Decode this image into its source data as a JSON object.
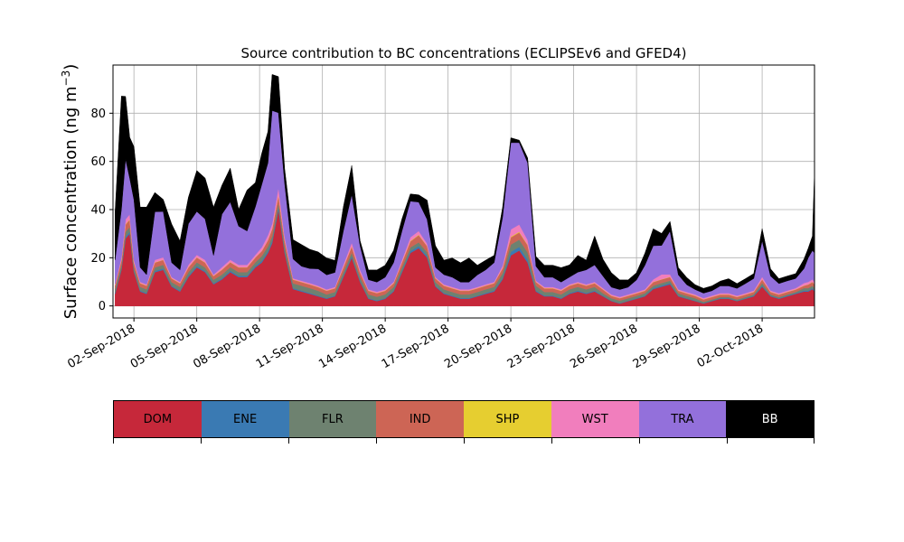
{
  "chart_data": {
    "type": "area",
    "title": "Source contribution to BC concentrations (ECLIPSEv6 and GFED4)",
    "ylabel": "Surface concentration (ng m",
    "ylabel_exponent": "−3",
    "ylabel_close": ")",
    "ylim": [
      -5,
      100
    ],
    "yticks": [
      0,
      20,
      40,
      60,
      80
    ],
    "xlim_days": [
      -1.0,
      32.5
    ],
    "xticks": [
      "02-Sep-2018",
      "05-Sep-2018",
      "08-Sep-2018",
      "11-Sep-2018",
      "14-Sep-2018",
      "17-Sep-2018",
      "20-Sep-2018",
      "23-Sep-2018",
      "26-Sep-2018",
      "29-Sep-2018",
      "02-Oct-2018"
    ],
    "xtick_days": [
      0,
      3,
      6,
      9,
      12,
      15,
      18,
      21,
      24,
      27,
      30
    ],
    "grid": true,
    "x_days": [
      -0.9,
      -0.6,
      -0.4,
      -0.2,
      0.0,
      0.3,
      0.6,
      1.0,
      1.4,
      1.8,
      2.2,
      2.6,
      3.0,
      3.4,
      3.8,
      4.2,
      4.6,
      5.0,
      5.4,
      5.8,
      6.1,
      6.4,
      6.6,
      6.9,
      7.2,
      7.6,
      8.0,
      8.4,
      8.8,
      9.2,
      9.6,
      10.0,
      10.4,
      10.8,
      11.2,
      11.6,
      12.0,
      12.4,
      12.8,
      13.2,
      13.6,
      14.0,
      14.4,
      14.8,
      15.2,
      15.6,
      16.0,
      16.4,
      16.8,
      17.2,
      17.6,
      18.0,
      18.4,
      18.8,
      19.2,
      19.6,
      20.0,
      20.4,
      20.8,
      21.2,
      21.6,
      22.0,
      22.4,
      22.8,
      23.2,
      23.6,
      24.0,
      24.4,
      24.8,
      25.2,
      25.6,
      26.0,
      26.4,
      26.8,
      27.2,
      27.6,
      28.0,
      28.4,
      28.8,
      29.2,
      29.6,
      30.0,
      30.4,
      30.8,
      31.2,
      31.6,
      32.0,
      32.2,
      32.4,
      32.5
    ],
    "series": [
      {
        "name": "DOM",
        "values": [
          5,
          15,
          28,
          30,
          14,
          6,
          5,
          14,
          15,
          8,
          6,
          12,
          16,
          14,
          9,
          11,
          14,
          12,
          12,
          16,
          18,
          22,
          26,
          40,
          22,
          7,
          6,
          5,
          4,
          3,
          4,
          12,
          20,
          10,
          3,
          2,
          3,
          6,
          14,
          22,
          24,
          20,
          8,
          5,
          4,
          3,
          3,
          4,
          5,
          6,
          11,
          21,
          23,
          18,
          6,
          4,
          4,
          3,
          5,
          6,
          5,
          6,
          4,
          2,
          1,
          2,
          3,
          4,
          7,
          8,
          9,
          4,
          3,
          2,
          1,
          2,
          3,
          3,
          2,
          3,
          4,
          8,
          4,
          3,
          4,
          5,
          6,
          6,
          7,
          6
        ]
      },
      {
        "name": "ENE",
        "values": [
          0.5,
          0.5,
          0.8,
          0.8,
          0.5,
          0.4,
          0.4,
          0.5,
          0.6,
          0.4,
          0.4,
          0.5,
          0.6,
          0.5,
          0.4,
          0.5,
          0.6,
          0.5,
          0.5,
          0.6,
          0.7,
          0.8,
          0.9,
          1.0,
          0.8,
          0.4,
          0.4,
          0.4,
          0.3,
          0.3,
          0.3,
          0.5,
          0.7,
          0.5,
          0.3,
          0.3,
          0.3,
          0.4,
          0.6,
          0.8,
          0.9,
          0.8,
          0.4,
          0.4,
          0.3,
          0.3,
          0.3,
          0.3,
          0.4,
          0.4,
          0.6,
          1.5,
          1.5,
          1.2,
          0.4,
          0.3,
          0.3,
          0.3,
          0.4,
          0.4,
          0.4,
          0.4,
          0.3,
          0.2,
          0.2,
          0.2,
          0.2,
          0.3,
          0.4,
          0.5,
          0.5,
          0.3,
          0.2,
          0.2,
          0.2,
          0.2,
          0.2,
          0.2,
          0.2,
          0.2,
          0.3,
          0.5,
          0.3,
          0.2,
          0.3,
          0.3,
          0.4,
          0.4,
          0.4,
          0.4
        ]
      },
      {
        "name": "FLR",
        "values": [
          1.5,
          1.5,
          2,
          2,
          1.5,
          1.5,
          1.5,
          1.5,
          1.5,
          1.5,
          1.5,
          1.5,
          1.5,
          1.5,
          1.5,
          1.5,
          1.5,
          1.5,
          1.5,
          1.5,
          2,
          2,
          2,
          2,
          2,
          2,
          2,
          2,
          2,
          1.5,
          1.5,
          1.5,
          1.5,
          1.5,
          1.5,
          1.5,
          1.5,
          1.5,
          1.5,
          1.5,
          1.5,
          1.5,
          1.5,
          1.5,
          1.5,
          1.5,
          1.5,
          1.5,
          1.5,
          1.5,
          2,
          3,
          3,
          3,
          2,
          1.5,
          1.5,
          1.5,
          1.5,
          1.5,
          1.5,
          1.5,
          1,
          1,
          1,
          1,
          1,
          1,
          1,
          1,
          1,
          1,
          1,
          1,
          0.5,
          0.5,
          0.5,
          0.5,
          0.5,
          0.5,
          0.5,
          1,
          0.5,
          0.5,
          0.5,
          0.5,
          1,
          1,
          1,
          1
        ]
      },
      {
        "name": "IND",
        "values": [
          1.5,
          2,
          3,
          3,
          2,
          1.5,
          1.5,
          2,
          2,
          1.5,
          1.5,
          2,
          2,
          2,
          1.5,
          2,
          2,
          2,
          2,
          2,
          2,
          2.5,
          3,
          3,
          2.5,
          1.5,
          1.5,
          1.5,
          1.5,
          1.5,
          1.5,
          2,
          2.5,
          2,
          1.5,
          1.5,
          1.5,
          1.5,
          2,
          2.5,
          3,
          2.5,
          1.5,
          1.5,
          1.5,
          1.5,
          1.5,
          1.5,
          1.5,
          1.5,
          2,
          3,
          3,
          3,
          1.5,
          1.5,
          1.5,
          1.5,
          1.5,
          1.5,
          1.5,
          1.5,
          1.5,
          1,
          1,
          1,
          1,
          1,
          1.5,
          1.5,
          1.5,
          1,
          1,
          1,
          1,
          1,
          1,
          1,
          1,
          1,
          1,
          1.5,
          1,
          1,
          1,
          1,
          1,
          1.5,
          1.5,
          1.5
        ]
      },
      {
        "name": "SHP",
        "values": [
          0.1,
          0.1,
          0.2,
          0.2,
          0.1,
          0.1,
          0.1,
          0.1,
          0.1,
          0.1,
          0.1,
          0.1,
          0.1,
          0.1,
          0.1,
          0.1,
          0.1,
          0.1,
          0.1,
          0.1,
          0.1,
          0.1,
          0.2,
          0.2,
          0.1,
          0.1,
          0.1,
          0.1,
          0.1,
          0.1,
          0.1,
          0.1,
          0.1,
          0.1,
          0.1,
          0.1,
          0.1,
          0.1,
          0.1,
          0.2,
          0.2,
          0.1,
          0.1,
          0.1,
          0.1,
          0.1,
          0.1,
          0.1,
          0.1,
          0.1,
          0.1,
          0.3,
          0.3,
          0.2,
          0.1,
          0.1,
          0.1,
          0.1,
          0.1,
          0.1,
          0.1,
          0.1,
          0.1,
          0.1,
          0.1,
          0.1,
          0.1,
          0.1,
          0.1,
          0.1,
          0.1,
          0.1,
          0.1,
          0.1,
          0.1,
          0.1,
          0.1,
          0.1,
          0.1,
          0.1,
          0.1,
          0.1,
          0.1,
          0.1,
          0.1,
          0.1,
          0.1,
          0.1,
          0.1,
          0.1
        ]
      },
      {
        "name": "WST",
        "values": [
          0.5,
          1,
          2,
          2,
          1,
          0.5,
          0.5,
          1,
          1,
          0.5,
          0.5,
          1,
          1,
          1,
          0.5,
          1,
          1,
          1,
          1,
          1,
          1.5,
          2,
          2,
          3,
          1.5,
          0.5,
          0.5,
          0.5,
          0.5,
          0.5,
          0.5,
          1,
          1.5,
          1,
          0.5,
          0.5,
          0.5,
          0.5,
          1,
          1.5,
          1.5,
          1,
          0.5,
          0.5,
          0.5,
          0.5,
          0.5,
          0.5,
          0.5,
          0.5,
          1,
          3,
          3,
          2,
          0.5,
          0.5,
          0.5,
          0.5,
          0.5,
          0.5,
          0.5,
          0.5,
          0.5,
          0.5,
          0.5,
          0.5,
          0.5,
          0.5,
          1,
          2,
          1,
          0.5,
          0.5,
          0.5,
          0.5,
          0.5,
          0.5,
          0.5,
          0.5,
          0.5,
          0.5,
          1,
          0.5,
          0.5,
          0.5,
          0.5,
          1,
          1,
          1,
          1
        ]
      },
      {
        "name": "TRA",
        "values": [
          10,
          20,
          25,
          15,
          25,
          6,
          4,
          20,
          19,
          6,
          5,
          17,
          18,
          17,
          8,
          22,
          24,
          16,
          14,
          20,
          26,
          30,
          47,
          31,
          22,
          8,
          6,
          6,
          7,
          6,
          6,
          14,
          20,
          10,
          4,
          4,
          5,
          8,
          12,
          15,
          12,
          10,
          4,
          4,
          4,
          3,
          3,
          5,
          6,
          8,
          20,
          36,
          34,
          32,
          6,
          4,
          4,
          3,
          3,
          4,
          6,
          7,
          5,
          3,
          3,
          3,
          5,
          10,
          14,
          12,
          18,
          6,
          3,
          2,
          2,
          2,
          3,
          3,
          3,
          4,
          5,
          15,
          6,
          4,
          4,
          4,
          6,
          10,
          12,
          12
        ]
      },
      {
        "name": "BB",
        "values": [
          20,
          47,
          26,
          17,
          22,
          25,
          28,
          8,
          5,
          16,
          12,
          11,
          17,
          17,
          20,
          12,
          14,
          7,
          17,
          10,
          13,
          13,
          15,
          15,
          6,
          8,
          9,
          8,
          7,
          7,
          5,
          10,
          12,
          2,
          4,
          5,
          5,
          5,
          5,
          3,
          3,
          8,
          9,
          6,
          8,
          8,
          10,
          4,
          4,
          3,
          4,
          2,
          1,
          2,
          4,
          5,
          5,
          6,
          5,
          7,
          4,
          12,
          7,
          6,
          4,
          3,
          3,
          5,
          7,
          5,
          4,
          3,
          3,
          2,
          2,
          2,
          2,
          3,
          2,
          2,
          2,
          5,
          3,
          2,
          2,
          2,
          4,
          4,
          6,
          34
        ]
      }
    ]
  },
  "legend": {
    "items": [
      {
        "label": "DOM",
        "color": "#c6283a"
      },
      {
        "label": "ENE",
        "color": "#3a7ab3"
      },
      {
        "label": "FLR",
        "color": "#6e8270"
      },
      {
        "label": "IND",
        "color": "#cd6555"
      },
      {
        "label": "SHP",
        "color": "#e6ce30"
      },
      {
        "label": "WST",
        "color": "#f17ebd"
      },
      {
        "label": "TRA",
        "color": "#9370db"
      },
      {
        "label": "BB",
        "color": "#000000"
      }
    ]
  }
}
